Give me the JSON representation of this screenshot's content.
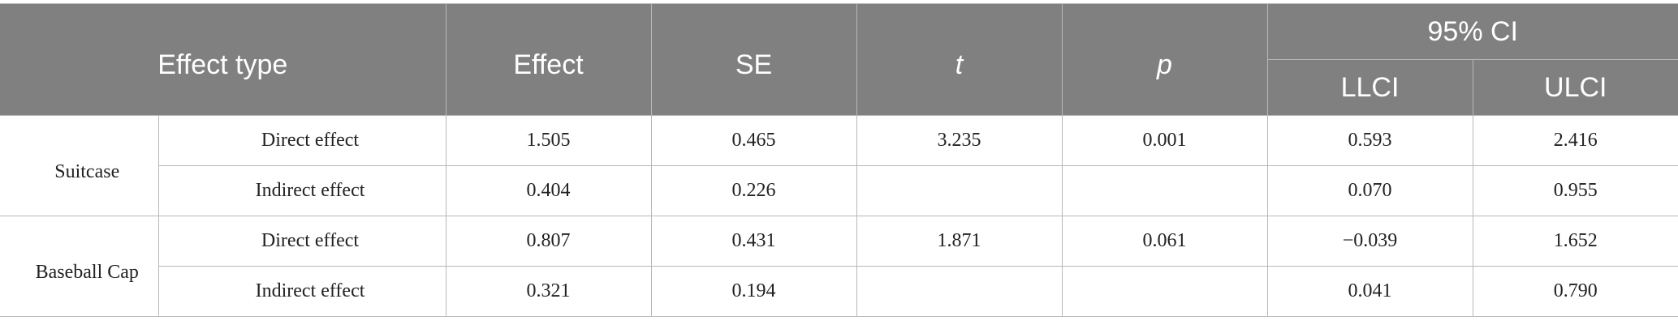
{
  "table": {
    "headers": {
      "effect_type": "Effect type",
      "effect": "Effect",
      "se": "SE",
      "t": "t",
      "p": "p",
      "ci": "95% CI",
      "llci": "LLCI",
      "ulci": "ULCI"
    },
    "groups": [
      {
        "product": "Suitcase",
        "rows": [
          {
            "type": "Direct effect",
            "effect": "1.505",
            "se": "0.465",
            "t": "3.235",
            "p": "0.001",
            "llci": "0.593",
            "ulci": "2.416"
          },
          {
            "type": "Indirect effect",
            "effect": "0.404",
            "se": "0.226",
            "t": "",
            "p": "",
            "llci": "0.070",
            "ulci": "0.955"
          }
        ]
      },
      {
        "product": "Baseball Cap",
        "rows": [
          {
            "type": "Direct effect",
            "effect": "0.807",
            "se": "0.431",
            "t": "1.871",
            "p": "0.061",
            "llci": "−0.039",
            "ulci": "1.652"
          },
          {
            "type": "Indirect effect",
            "effect": "0.321",
            "se": "0.194",
            "t": "",
            "p": "",
            "llci": "0.041",
            "ulci": "0.790"
          }
        ]
      }
    ]
  }
}
